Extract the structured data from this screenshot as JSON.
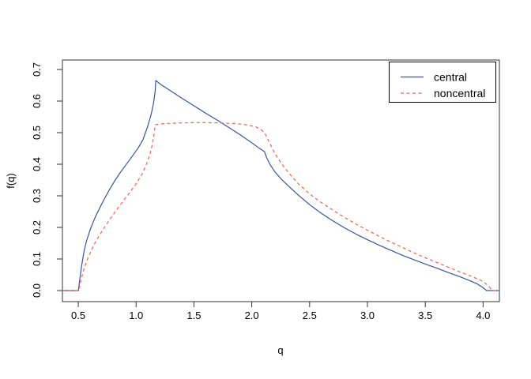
{
  "figure": {
    "background": "#ffffff",
    "box_color": "#333333",
    "tick_color": "#333333",
    "text_color": "#000000"
  },
  "chart_data": {
    "type": "line",
    "title": "",
    "xlabel": "q",
    "ylabel": "f(q)",
    "xlim": [
      0.363,
      4.141
    ],
    "ylim": [
      -0.035,
      0.73
    ],
    "grid": false,
    "xticks": [
      0.5,
      1.0,
      1.5,
      2.0,
      2.5,
      3.0,
      3.5,
      4.0
    ],
    "xtick_labels": [
      "0.5",
      "1.0",
      "1.5",
      "2.0",
      "2.5",
      "3.0",
      "3.5",
      "4.0"
    ],
    "yticks": [
      0.0,
      0.1,
      0.2,
      0.3,
      0.4,
      0.5,
      0.6,
      0.7
    ],
    "ytick_labels": [
      "0.0",
      "0.1",
      "0.2",
      "0.3",
      "0.4",
      "0.5",
      "0.6",
      "0.7"
    ],
    "legend": {
      "position": "top-right",
      "border": true,
      "entries": [
        {
          "label": "central",
          "color": "#3a52a3",
          "style": "solid"
        },
        {
          "label": "noncentral",
          "color": "#f4614d",
          "style": "dashed"
        }
      ]
    },
    "series": [
      {
        "name": "central",
        "color": "#3a52a3",
        "style": "solid",
        "points": [
          [
            0.363,
            0
          ],
          [
            0.5,
            0
          ],
          [
            0.505,
            0.012
          ],
          [
            0.515,
            0.04
          ],
          [
            0.53,
            0.08
          ],
          [
            0.55,
            0.125
          ],
          [
            0.57,
            0.155
          ],
          [
            0.6,
            0.19
          ],
          [
            0.63,
            0.218
          ],
          [
            0.66,
            0.243
          ],
          [
            0.7,
            0.272
          ],
          [
            0.74,
            0.3
          ],
          [
            0.78,
            0.326
          ],
          [
            0.82,
            0.35
          ],
          [
            0.86,
            0.372
          ],
          [
            0.9,
            0.392
          ],
          [
            0.94,
            0.412
          ],
          [
            0.98,
            0.432
          ],
          [
            1.02,
            0.453
          ],
          [
            1.06,
            0.478
          ],
          [
            1.1,
            0.52
          ],
          [
            1.13,
            0.558
          ],
          [
            1.15,
            0.592
          ],
          [
            1.165,
            0.632
          ],
          [
            1.17,
            0.665
          ],
          [
            1.22,
            0.651
          ],
          [
            1.3,
            0.632
          ],
          [
            1.4,
            0.608
          ],
          [
            1.5,
            0.585
          ],
          [
            1.6,
            0.562
          ],
          [
            1.7,
            0.54
          ],
          [
            1.8,
            0.517
          ],
          [
            1.9,
            0.493
          ],
          [
            2.0,
            0.468
          ],
          [
            2.06,
            0.452
          ],
          [
            2.11,
            0.44
          ],
          [
            2.13,
            0.42
          ],
          [
            2.16,
            0.398
          ],
          [
            2.2,
            0.376
          ],
          [
            2.25,
            0.355
          ],
          [
            2.3,
            0.337
          ],
          [
            2.4,
            0.303
          ],
          [
            2.5,
            0.272
          ],
          [
            2.6,
            0.245
          ],
          [
            2.7,
            0.221
          ],
          [
            2.8,
            0.199
          ],
          [
            2.9,
            0.179
          ],
          [
            3.0,
            0.161
          ],
          [
            3.1,
            0.144
          ],
          [
            3.2,
            0.128
          ],
          [
            3.3,
            0.112
          ],
          [
            3.4,
            0.098
          ],
          [
            3.5,
            0.084
          ],
          [
            3.6,
            0.071
          ],
          [
            3.7,
            0.057
          ],
          [
            3.8,
            0.044
          ],
          [
            3.9,
            0.029
          ],
          [
            3.95,
            0.021
          ],
          [
            4.0,
            0.009
          ],
          [
            4.03,
            0
          ],
          [
            4.141,
            0
          ]
        ]
      },
      {
        "name": "noncentral",
        "color": "#f4614d",
        "style": "dashed",
        "points": [
          [
            0.363,
            0
          ],
          [
            0.5,
            0
          ],
          [
            0.51,
            0.01
          ],
          [
            0.525,
            0.035
          ],
          [
            0.55,
            0.07
          ],
          [
            0.58,
            0.1
          ],
          [
            0.61,
            0.125
          ],
          [
            0.65,
            0.155
          ],
          [
            0.7,
            0.185
          ],
          [
            0.75,
            0.213
          ],
          [
            0.8,
            0.24
          ],
          [
            0.85,
            0.265
          ],
          [
            0.9,
            0.289
          ],
          [
            0.95,
            0.313
          ],
          [
            1.0,
            0.338
          ],
          [
            1.05,
            0.368
          ],
          [
            1.09,
            0.4
          ],
          [
            1.12,
            0.432
          ],
          [
            1.14,
            0.462
          ],
          [
            1.155,
            0.495
          ],
          [
            1.165,
            0.525
          ],
          [
            1.25,
            0.529
          ],
          [
            1.4,
            0.531
          ],
          [
            1.55,
            0.532
          ],
          [
            1.7,
            0.531
          ],
          [
            1.85,
            0.529
          ],
          [
            1.95,
            0.525
          ],
          [
            2.03,
            0.519
          ],
          [
            2.08,
            0.51
          ],
          [
            2.11,
            0.5
          ],
          [
            2.14,
            0.478
          ],
          [
            2.18,
            0.448
          ],
          [
            2.22,
            0.422
          ],
          [
            2.27,
            0.396
          ],
          [
            2.32,
            0.372
          ],
          [
            2.4,
            0.339
          ],
          [
            2.5,
            0.306
          ],
          [
            2.6,
            0.279
          ],
          [
            2.7,
            0.255
          ],
          [
            2.8,
            0.232
          ],
          [
            2.9,
            0.211
          ],
          [
            3.0,
            0.191
          ],
          [
            3.1,
            0.172
          ],
          [
            3.2,
            0.154
          ],
          [
            3.3,
            0.137
          ],
          [
            3.4,
            0.12
          ],
          [
            3.5,
            0.104
          ],
          [
            3.6,
            0.089
          ],
          [
            3.7,
            0.074
          ],
          [
            3.8,
            0.059
          ],
          [
            3.9,
            0.045
          ],
          [
            4.0,
            0.029
          ],
          [
            4.05,
            0.013
          ],
          [
            4.08,
            0
          ],
          [
            4.141,
            0
          ]
        ]
      }
    ]
  }
}
